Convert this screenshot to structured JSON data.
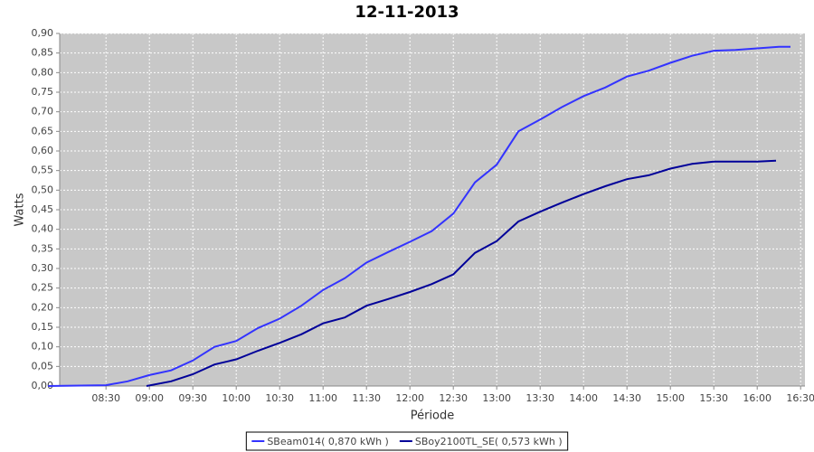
{
  "chart_data": {
    "type": "line",
    "title": "12-11-2013",
    "x_label": "Période",
    "y_label": "Watts",
    "xlim": [
      "07:58",
      "16:33"
    ],
    "xticks": [
      "08:30",
      "09:00",
      "09:30",
      "10:00",
      "10:30",
      "11:00",
      "11:30",
      "12:00",
      "12:30",
      "13:00",
      "13:30",
      "14:00",
      "14:30",
      "15:00",
      "15:30",
      "16:00",
      "16:30"
    ],
    "ylim": [
      0,
      0.9
    ],
    "yticks": [
      {
        "value": 0,
        "label": "0,00"
      },
      {
        "value": 0.05,
        "label": "0,05"
      },
      {
        "value": 0.1,
        "label": "0,10"
      },
      {
        "value": 0.15,
        "label": "0,15"
      },
      {
        "value": 0.2,
        "label": "0,20"
      },
      {
        "value": 0.25,
        "label": "0,25"
      },
      {
        "value": 0.3,
        "label": "0,30"
      },
      {
        "value": 0.35,
        "label": "0,35"
      },
      {
        "value": 0.4,
        "label": "0,40"
      },
      {
        "value": 0.45,
        "label": "0,45"
      },
      {
        "value": 0.5,
        "label": "0,50"
      },
      {
        "value": 0.55,
        "label": "0,55"
      },
      {
        "value": 0.6,
        "label": "0,60"
      },
      {
        "value": 0.65,
        "label": "0,65"
      },
      {
        "value": 0.7,
        "label": "0,70"
      },
      {
        "value": 0.75,
        "label": "0,75"
      },
      {
        "value": 0.8,
        "label": "0,80"
      },
      {
        "value": 0.85,
        "label": "0,85"
      },
      {
        "value": 0.9,
        "label": "0,90"
      }
    ],
    "grid": true,
    "legend": "bottom",
    "series": [
      {
        "name": "SBeam014( 0,870 kWh )",
        "color": "#3333ff",
        "x": [
          "07:50",
          "08:30",
          "08:45",
          "09:00",
          "09:15",
          "09:30",
          "09:45",
          "10:00",
          "10:15",
          "10:30",
          "10:45",
          "11:00",
          "11:15",
          "11:30",
          "11:45",
          "12:00",
          "12:15",
          "12:30",
          "12:45",
          "13:00",
          "13:15",
          "13:30",
          "13:45",
          "14:00",
          "14:15",
          "14:30",
          "14:45",
          "15:00",
          "15:15",
          "15:30",
          "15:45",
          "16:00",
          "16:15",
          "16:23"
        ],
        "values": [
          0,
          0.002,
          0.012,
          0.028,
          0.04,
          0.065,
          0.1,
          0.115,
          0.148,
          0.172,
          0.205,
          0.245,
          0.275,
          0.315,
          0.342,
          0.368,
          0.395,
          0.44,
          0.52,
          0.565,
          0.65,
          0.68,
          0.712,
          0.74,
          0.762,
          0.79,
          0.805,
          0.825,
          0.843,
          0.856,
          0.858,
          0.862,
          0.866,
          0.866
        ]
      },
      {
        "name": "SBoy2100TL_SE( 0,573 kWh )",
        "color": "#000099",
        "x": [
          "08:58",
          "09:15",
          "09:30",
          "09:45",
          "10:00",
          "10:15",
          "10:30",
          "10:45",
          "11:00",
          "11:15",
          "11:30",
          "11:45",
          "12:00",
          "12:15",
          "12:30",
          "12:45",
          "13:00",
          "13:15",
          "13:30",
          "13:45",
          "14:00",
          "14:15",
          "14:30",
          "14:45",
          "15:00",
          "15:15",
          "15:30",
          "15:45",
          "16:00",
          "16:13"
        ],
        "values": [
          0,
          0.012,
          0.03,
          0.055,
          0.068,
          0.09,
          0.11,
          0.132,
          0.16,
          0.175,
          0.205,
          0.222,
          0.24,
          0.26,
          0.285,
          0.34,
          0.37,
          0.42,
          0.445,
          0.468,
          0.49,
          0.51,
          0.528,
          0.538,
          0.555,
          0.567,
          0.573,
          0.573,
          0.573,
          0.575
        ]
      }
    ]
  }
}
